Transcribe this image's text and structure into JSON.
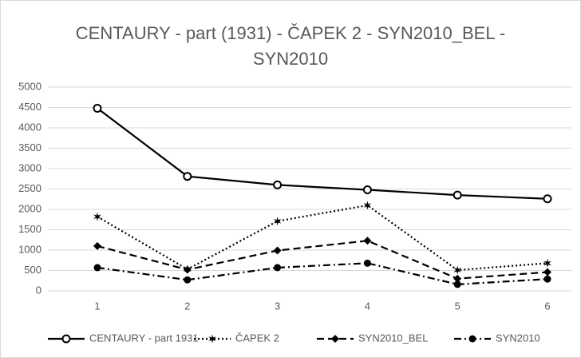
{
  "chart_data": {
    "type": "line",
    "title": "CENTAURY - part (1931) - ČAPEK 2 - SYN2010_BEL - SYN2010",
    "categories": [
      "1",
      "2",
      "3",
      "4",
      "5",
      "6"
    ],
    "series": [
      {
        "name": "CENTAURY - part 1931",
        "color": "#000000",
        "dash": "solid",
        "marker": "circle-open",
        "values": [
          4480,
          2810,
          2600,
          2480,
          2350,
          2260
        ]
      },
      {
        "name": "ČAPEK 2",
        "color": "#000000",
        "dash": "dotted",
        "marker": "star",
        "values": [
          1820,
          530,
          1710,
          2100,
          510,
          680
        ]
      },
      {
        "name": "SYN2010_BEL",
        "color": "#000000",
        "dash": "dashed",
        "marker": "diamond",
        "values": [
          1100,
          520,
          990,
          1230,
          300,
          460
        ]
      },
      {
        "name": "SYN2010",
        "color": "#000000",
        "dash": "dash-dot",
        "marker": "circle",
        "values": [
          570,
          270,
          570,
          680,
          160,
          290
        ]
      }
    ],
    "ylim": [
      0,
      5000
    ],
    "yticks": [
      0,
      500,
      1000,
      1500,
      2000,
      2500,
      3000,
      3500,
      4000,
      4500,
      5000
    ],
    "grid": true,
    "legend": "bottom"
  }
}
